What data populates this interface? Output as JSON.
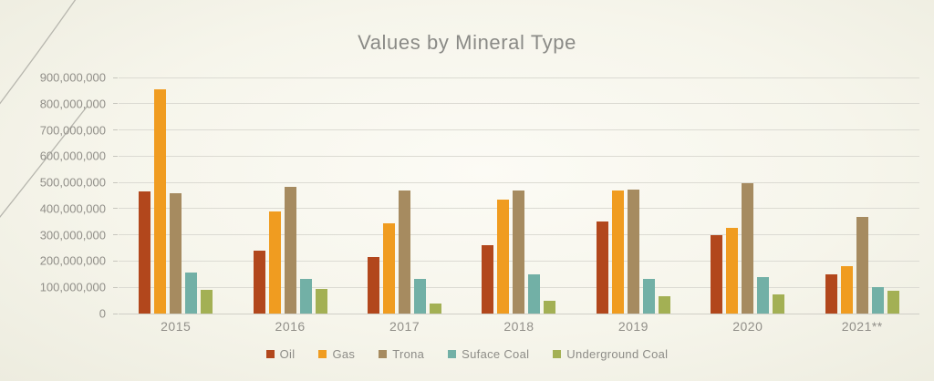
{
  "chart_data": {
    "type": "bar",
    "title": "Values by Mineral Type",
    "categories": [
      "2015",
      "2016",
      "2017",
      "2018",
      "2019",
      "2020",
      "2021**"
    ],
    "series": [
      {
        "name": "Oil",
        "color": "#b2471c",
        "values": [
          465000000,
          240000000,
          215000000,
          260000000,
          352000000,
          298000000,
          150000000
        ]
      },
      {
        "name": "Gas",
        "color": "#f09c20",
        "values": [
          855000000,
          390000000,
          343000000,
          435000000,
          470000000,
          327000000,
          180000000
        ]
      },
      {
        "name": "Trona",
        "color": "#a68b60",
        "values": [
          460000000,
          483000000,
          468000000,
          470000000,
          472000000,
          498000000,
          370000000
        ]
      },
      {
        "name": "Suface Coal",
        "color": "#72b0a6",
        "values": [
          155000000,
          133000000,
          133000000,
          148000000,
          132000000,
          140000000,
          100000000
        ]
      },
      {
        "name": "Underground Coal",
        "color": "#a3b054",
        "values": [
          90000000,
          95000000,
          40000000,
          50000000,
          65000000,
          72000000,
          88000000
        ]
      }
    ],
    "ylim": [
      0,
      900000000
    ],
    "ytick_step": 100000000,
    "grid": true,
    "legend_position": "bottom",
    "text_color": "#918f89",
    "gridline_color": "#dcdbd3",
    "background_color": "#f6f5eb"
  }
}
